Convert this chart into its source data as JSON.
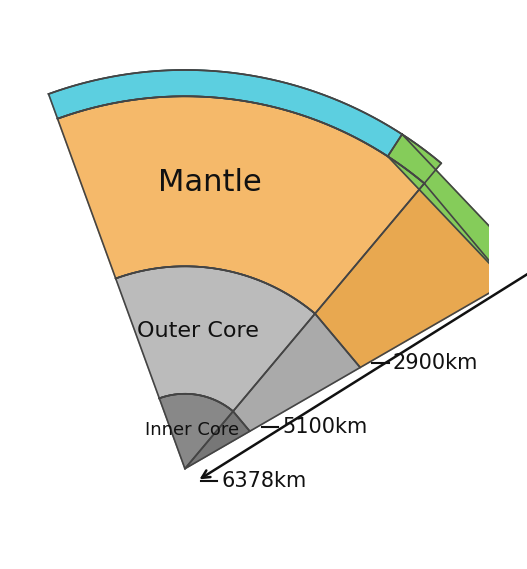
{
  "colors": {
    "ocean": "#5CCFE0",
    "land": "#85CC5A",
    "mantle": "#F5B96A",
    "mantle_side": "#E8A850",
    "outer_core": "#BBBBBB",
    "outer_core_side": "#AAAAAA",
    "inner_core": "#888888",
    "inner_core_side": "#777777",
    "outline": "#444444",
    "background": "#FFFFFF",
    "arrow": "#111111",
    "text": "#111111"
  },
  "labels": {
    "mantle": "Mantle",
    "outer_core": "Outer Core",
    "inner_core": "Inner Core",
    "depth1": "2900km",
    "depth2": "5100km",
    "depth3": "6378km"
  },
  "font_sizes": {
    "mantle_label": 22,
    "core_label": 16,
    "depth_label": 15
  }
}
